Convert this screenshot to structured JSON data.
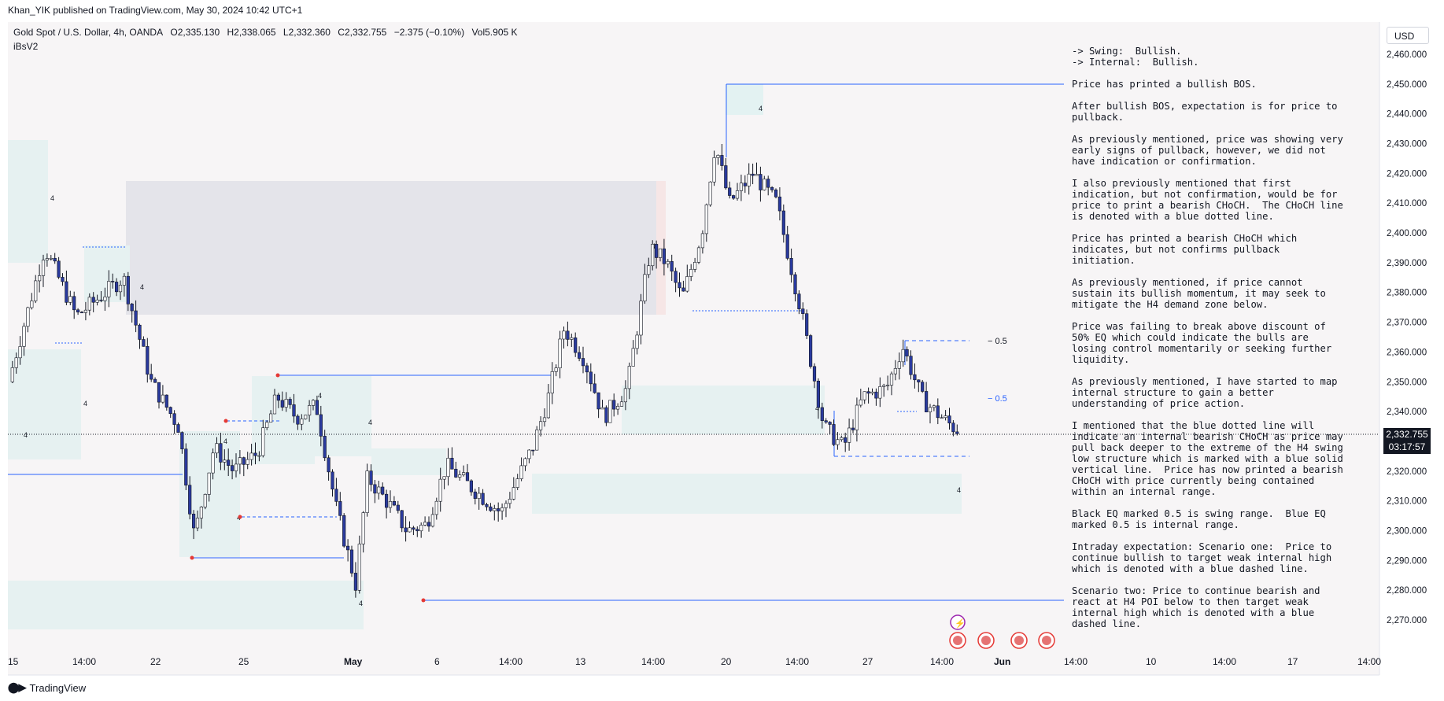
{
  "header": {
    "published": "Khan_YIK published on TradingView.com, May 30, 2024 10:42 UTC+1",
    "symbol": "Gold Spot / U.S. Dollar, 4h, OANDA",
    "open": "O2,335.130",
    "high": "H2,338.065",
    "low": "L2,332.360",
    "close": "C2,332.755",
    "change": "−2.375 (−0.10%)",
    "volume": "Vol5.905 K",
    "indicator": "iBsV2"
  },
  "currency_button": "USD",
  "price_axis": {
    "ticks": [
      "2,460.000",
      "2,450.000",
      "2,440.000",
      "2,430.000",
      "2,420.000",
      "2,410.000",
      "2,400.000",
      "2,390.000",
      "2,380.000",
      "2,370.000",
      "2,360.000",
      "2,350.000",
      "2,340.000",
      "2,320.000",
      "2,310.000",
      "2,300.000",
      "2,290.000",
      "2,280.000",
      "2,270.000"
    ],
    "last_price": "2,332.755",
    "countdown": "03:17:57"
  },
  "time_axis": [
    "15",
    "14:00",
    "22",
    "25",
    "May",
    "6",
    "14:00",
    "13",
    "14:00",
    "20",
    "14:00",
    "27",
    "14:00",
    "Jun",
    "14:00",
    "10",
    "14:00",
    "17",
    "14:00"
  ],
  "eq_labels": {
    "swing": "−  0.5",
    "internal": "−  0.5"
  },
  "notes": [
    "-> Swing:  Bullish.\n-> Internal:  Bullish.",
    "Price has printed a bullish BOS.",
    "After bullish BOS, expectation is for price to pullback.",
    "As previously mentioned, price was showing very early signs of pullback, however, we did not have indication or confirmation.",
    "I also previously mentioned that first indication, but not confirmation, would be for price to print a bearish CHoCH.  The CHoCH line is denoted with a blue dotted line.",
    "Price has printed a bearish CHoCH which indicates, but not confirms pullback initiation.",
    "As previously mentioned, if price cannot sustain its bullish momentum, it may seek to mitigate the H4 demand zone below.",
    "Price was failing to break above discount of 50% EQ which could indicate the bulls are losing control momentarily or seeking further liquidity.",
    "As previously mentioned, I have started to map internal structure to gain a better understanding of price action.",
    "I mentioned that the blue dotted line will indicate an internal bearish CHoCH as price may pull back deeper to the extreme of the H4 swing low structure which is marked with a blue solid vertical line.  Price has now printed a bearish CHoCH with price currently being contained within an internal range.",
    "Black EQ marked 0.5 is swing range.  Blue EQ marked 0.5 is internal range.",
    "Intraday expectation: Scenario one:  Price to continue bullish to target weak internal high which is denoted with a blue dashed line.",
    "Scenario two: Price to continue bearish and react at H4 POI below to then target weak internal high which is denoted with a blue dashed line."
  ],
  "zone_labels": [
    "4",
    "4",
    "4",
    "4",
    "4",
    "4",
    "4",
    "4",
    "4",
    "4",
    "4",
    "4",
    "4"
  ],
  "brand": "TradingView",
  "colors": {
    "up_candle": "#ffffff",
    "down_candle": "#2a3a9e",
    "wick": "#131722",
    "zone_teal": "#e3f2f2",
    "zone_grey": "#e4e4ea",
    "structure_line": "#2962ff",
    "chart_bg": "#f7f5f6"
  }
}
